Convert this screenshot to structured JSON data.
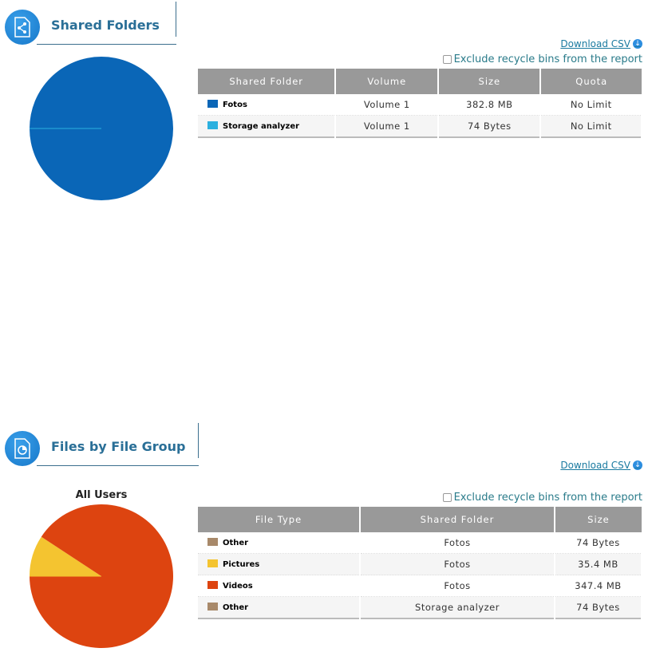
{
  "shared_folders": {
    "title": "Shared Folders",
    "download_csv": "Download CSV",
    "exclude_label": "Exclude recycle bins from the report",
    "columns": [
      "Shared Folder",
      "Volume",
      "Size",
      "Quota"
    ],
    "rows": [
      {
        "name": "Fotos",
        "volume": "Volume 1",
        "size": "382.8 MB",
        "quota": "No Limit",
        "color": "#0a66b7"
      },
      {
        "name": "Storage analyzer",
        "volume": "Volume 1",
        "size": "74 Bytes",
        "quota": "No Limit",
        "color": "#2bb0df"
      }
    ]
  },
  "file_groups": {
    "title": "Files by File Group",
    "download_csv": "Download CSV",
    "exclude_label": "Exclude recycle bins from the report",
    "chart_label": "All Users",
    "columns": [
      "File Type",
      "Shared Folder",
      "Size"
    ],
    "rows": [
      {
        "type": "Other",
        "folder": "Fotos",
        "size": "74 Bytes",
        "color": "#a8896a"
      },
      {
        "type": "Pictures",
        "folder": "Fotos",
        "size": "35.4 MB",
        "color": "#f4c430"
      },
      {
        "type": "Videos",
        "folder": "Fotos",
        "size": "347.4 MB",
        "color": "#dd4410"
      },
      {
        "type": "Other",
        "folder": "Storage analyzer",
        "size": "74 Bytes",
        "color": "#a8896a"
      }
    ]
  },
  "chart_data": [
    {
      "type": "pie",
      "categories": [
        "Fotos",
        "Storage analyzer"
      ],
      "values_bytes": [
        382800000,
        74
      ],
      "colors": [
        "#0a66b7",
        "#2bb0df"
      ]
    },
    {
      "type": "pie",
      "title": "All Users",
      "categories": [
        "Other",
        "Pictures",
        "Videos",
        "Other"
      ],
      "values_bytes": [
        74,
        35400000,
        347400000,
        74
      ],
      "colors": [
        "#a8896a",
        "#f4c430",
        "#dd4410",
        "#a8896a"
      ]
    }
  ]
}
